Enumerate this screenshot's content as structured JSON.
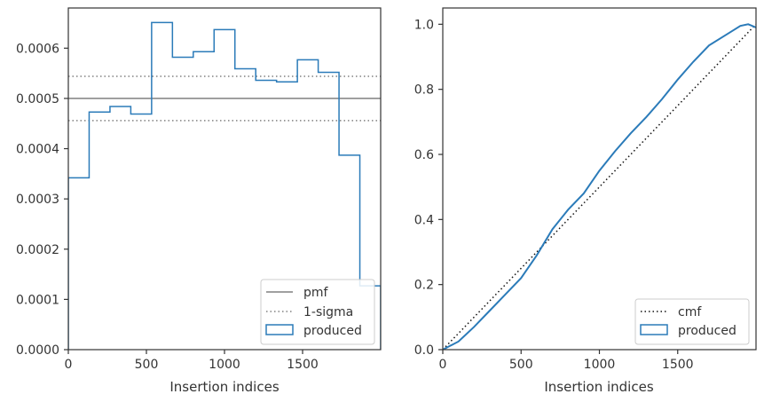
{
  "chart_data": [
    {
      "type": "histogram",
      "xlabel": "Insertion indices",
      "ylabel": "",
      "xlim": [
        0,
        2000
      ],
      "ylim": [
        0,
        0.00068
      ],
      "xticks": [
        0,
        500,
        1000,
        1500
      ],
      "yticks": [
        0.0,
        0.0001,
        0.0002,
        0.0003,
        0.0004,
        0.0005,
        0.0006
      ],
      "ytick_labels": [
        "0.0000",
        "0.0001",
        "0.0002",
        "0.0003",
        "0.0004",
        "0.0005",
        "0.0006"
      ],
      "grid": false,
      "legend_position": "lower-right",
      "bin_edges": [
        0,
        133.3,
        266.7,
        400,
        533.3,
        666.7,
        800,
        933.3,
        1066.7,
        1200,
        1333.3,
        1466.7,
        1600,
        1733.3,
        1866.7,
        2000
      ],
      "bin_values": [
        0.000342,
        0.000473,
        0.000484,
        0.000469,
        0.000651,
        0.000582,
        0.000593,
        0.000637,
        0.000559,
        0.000536,
        0.000533,
        0.000577,
        0.000552,
        0.000387,
        0.000127
      ],
      "reference_lines": [
        {
          "name": "pmf",
          "y": 0.0005,
          "style": "solid",
          "color": "#808080"
        },
        {
          "name": "1-sigma",
          "y": 0.000544,
          "style": "dotted",
          "color": "#808080"
        },
        {
          "name": "1-sigma",
          "y": 0.000456,
          "style": "dotted",
          "color": "#808080"
        }
      ],
      "series": [
        {
          "name": "produced",
          "color": "#2b7bb9"
        }
      ],
      "legend": [
        "pmf",
        "1-sigma",
        "produced"
      ]
    },
    {
      "type": "line",
      "xlabel": "Insertion indices",
      "ylabel": "",
      "xlim": [
        0,
        2000
      ],
      "ylim": [
        0,
        1.05
      ],
      "xticks": [
        0,
        500,
        1000,
        1500
      ],
      "yticks": [
        0.0,
        0.2,
        0.4,
        0.6,
        0.8,
        1.0
      ],
      "ytick_labels": [
        "0.0",
        "0.2",
        "0.4",
        "0.6",
        "0.8",
        "1.0"
      ],
      "grid": false,
      "legend_position": "lower-right",
      "series": [
        {
          "name": "cmf",
          "style": "dotted",
          "color": "#111111",
          "x": [
            0,
            2000
          ],
          "y": [
            0,
            1.0
          ]
        },
        {
          "name": "produced",
          "style": "solid",
          "color": "#2b7bb9",
          "x": [
            0,
            100,
            200,
            300,
            400,
            500,
            600,
            700,
            800,
            900,
            1000,
            1100,
            1200,
            1300,
            1400,
            1500,
            1600,
            1700,
            1800,
            1850,
            1900,
            1950,
            2000
          ],
          "y": [
            0,
            0.025,
            0.07,
            0.12,
            0.17,
            0.22,
            0.29,
            0.37,
            0.43,
            0.48,
            0.55,
            0.61,
            0.665,
            0.715,
            0.77,
            0.83,
            0.885,
            0.935,
            0.965,
            0.98,
            0.995,
            1.0,
            0.99
          ]
        }
      ],
      "legend": [
        "cmf",
        "produced"
      ]
    }
  ]
}
